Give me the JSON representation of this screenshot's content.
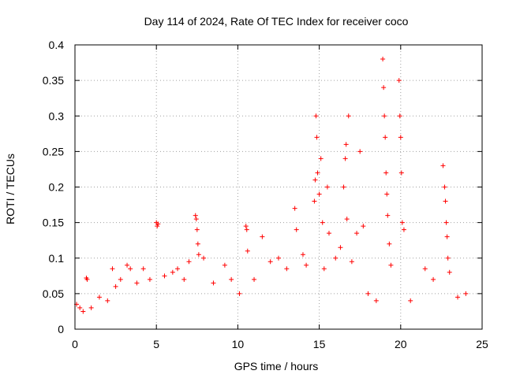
{
  "chart_data": {
    "type": "scatter",
    "title": "Day 114 of 2024, Rate Of TEC Index for receiver coco",
    "xlabel": "GPS time / hours",
    "ylabel": "ROTI / TECUs",
    "xlim": [
      0,
      25
    ],
    "ylim": [
      0,
      0.4
    ],
    "x_ticks": [
      "0",
      "5",
      "10",
      "15",
      "20",
      "25"
    ],
    "y_ticks": [
      "0",
      "0.05",
      "0.1",
      "0.15",
      "0.2",
      "0.25",
      "0.3",
      "0.35",
      "0.4"
    ],
    "grid": true,
    "marker": "+",
    "color": "#ff0000",
    "series": [
      {
        "points": [
          [
            0.1,
            0.035
          ],
          [
            0.3,
            0.03
          ],
          [
            0.5,
            0.025
          ],
          [
            0.7,
            0.072
          ],
          [
            0.75,
            0.07
          ],
          [
            1.0,
            0.03
          ],
          [
            1.5,
            0.045
          ],
          [
            2.0,
            0.04
          ],
          [
            2.3,
            0.085
          ],
          [
            2.5,
            0.06
          ],
          [
            2.8,
            0.07
          ],
          [
            3.2,
            0.09
          ],
          [
            3.4,
            0.085
          ],
          [
            3.8,
            0.065
          ],
          [
            4.2,
            0.085
          ],
          [
            4.6,
            0.07
          ],
          [
            5.0,
            0.15
          ],
          [
            5.05,
            0.145
          ],
          [
            5.1,
            0.148
          ],
          [
            5.5,
            0.075
          ],
          [
            6.0,
            0.08
          ],
          [
            6.3,
            0.085
          ],
          [
            6.7,
            0.07
          ],
          [
            7.0,
            0.095
          ],
          [
            7.4,
            0.16
          ],
          [
            7.45,
            0.155
          ],
          [
            7.5,
            0.14
          ],
          [
            7.55,
            0.12
          ],
          [
            7.6,
            0.105
          ],
          [
            7.9,
            0.1
          ],
          [
            8.5,
            0.065
          ],
          [
            9.2,
            0.09
          ],
          [
            9.6,
            0.07
          ],
          [
            10.1,
            0.05
          ],
          [
            10.5,
            0.145
          ],
          [
            10.55,
            0.14
          ],
          [
            10.6,
            0.11
          ],
          [
            11.0,
            0.07
          ],
          [
            11.5,
            0.13
          ],
          [
            12.0,
            0.095
          ],
          [
            12.5,
            0.1
          ],
          [
            13.0,
            0.085
          ],
          [
            13.5,
            0.17
          ],
          [
            13.6,
            0.14
          ],
          [
            14.0,
            0.105
          ],
          [
            14.2,
            0.09
          ],
          [
            14.7,
            0.18
          ],
          [
            14.75,
            0.21
          ],
          [
            14.8,
            0.3
          ],
          [
            14.85,
            0.27
          ],
          [
            14.9,
            0.22
          ],
          [
            15.0,
            0.19
          ],
          [
            15.1,
            0.24
          ],
          [
            15.2,
            0.15
          ],
          [
            15.3,
            0.085
          ],
          [
            15.5,
            0.2
          ],
          [
            15.6,
            0.135
          ],
          [
            16.0,
            0.1
          ],
          [
            16.3,
            0.115
          ],
          [
            16.5,
            0.2
          ],
          [
            16.6,
            0.24
          ],
          [
            16.65,
            0.26
          ],
          [
            16.7,
            0.155
          ],
          [
            16.8,
            0.3
          ],
          [
            17.0,
            0.095
          ],
          [
            17.3,
            0.135
          ],
          [
            17.5,
            0.25
          ],
          [
            17.7,
            0.145
          ],
          [
            18.0,
            0.05
          ],
          [
            18.5,
            0.04
          ],
          [
            18.9,
            0.38
          ],
          [
            18.95,
            0.34
          ],
          [
            19.0,
            0.3
          ],
          [
            19.05,
            0.27
          ],
          [
            19.1,
            0.22
          ],
          [
            19.15,
            0.19
          ],
          [
            19.2,
            0.16
          ],
          [
            19.3,
            0.12
          ],
          [
            19.4,
            0.09
          ],
          [
            19.9,
            0.35
          ],
          [
            19.95,
            0.3
          ],
          [
            20.0,
            0.27
          ],
          [
            20.05,
            0.22
          ],
          [
            20.1,
            0.15
          ],
          [
            20.2,
            0.14
          ],
          [
            20.6,
            0.04
          ],
          [
            21.5,
            0.085
          ],
          [
            22.0,
            0.07
          ],
          [
            22.6,
            0.23
          ],
          [
            22.7,
            0.2
          ],
          [
            22.75,
            0.18
          ],
          [
            22.8,
            0.15
          ],
          [
            22.85,
            0.13
          ],
          [
            22.9,
            0.1
          ],
          [
            23.0,
            0.08
          ],
          [
            23.5,
            0.045
          ],
          [
            24.0,
            0.05
          ]
        ]
      }
    ]
  }
}
